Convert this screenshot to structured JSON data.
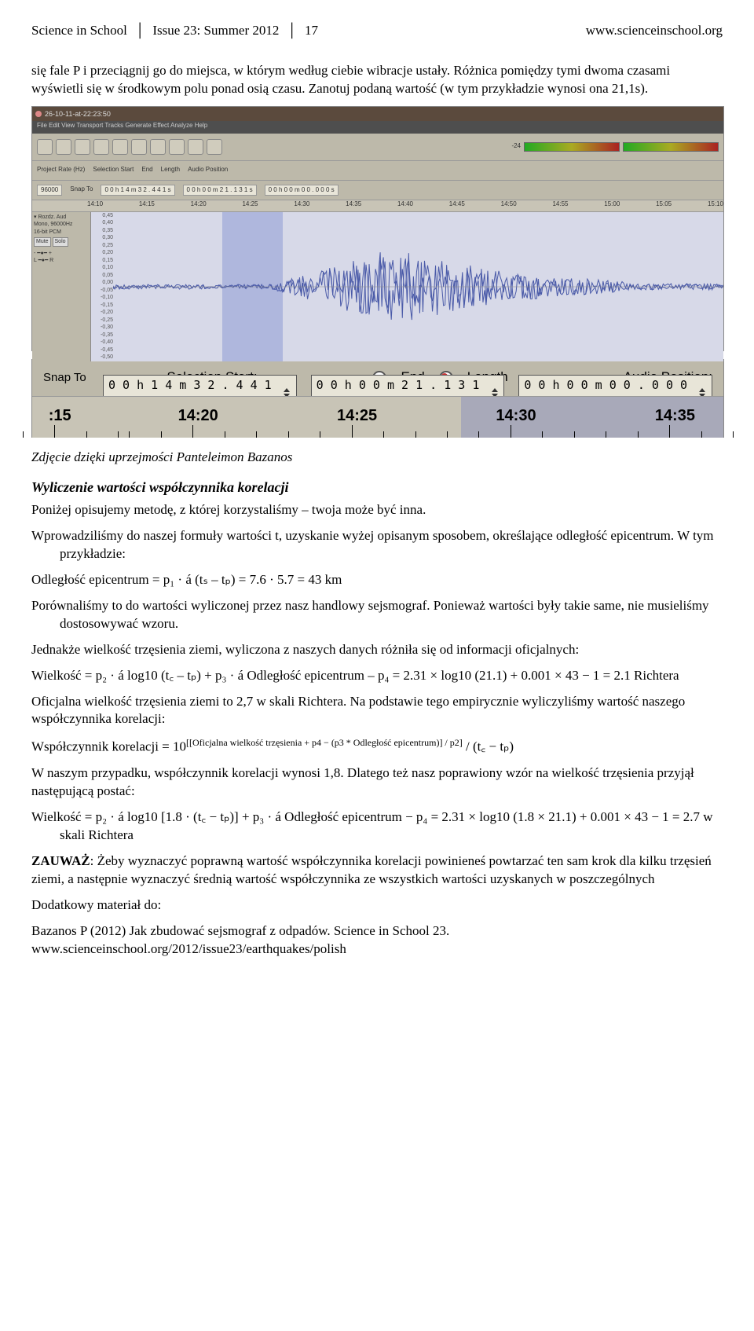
{
  "header": {
    "journal": "Science in School",
    "issue": "Issue 23: Summer 2012",
    "page": "17",
    "url": "www.scienceinschool.org"
  },
  "para1": "się fale P i przeciągnij go do miejsca, w którym według ciebie wibracje ustały. Różnica pomiędzy tymi dwoma czasami wyświetli się w środkowym polu ponad osią czasu. Zanotuj podaną wartość (w tym przykładzie wynosi ona 21,1s).",
  "screenshot1": {
    "titlebar": "26-10-11-at-22:23:50",
    "menu": "File  Edit  View  Transport  Tracks  Generate  Effect  Analyze  Help",
    "info": {
      "rate_label": "Project Rate (Hz)",
      "rate_val": "96000",
      "snap": "Snap To",
      "sel_start": "Selection Start",
      "end": "End",
      "length": "Length",
      "audio_pos": "Audio Position",
      "t1": "0 0 h 1 4 m 3 2 . 4 4 1 s",
      "t2": "0 0 h 0 0 m 2 1 . 1 3 1 s",
      "t3": "0 0 h 0 0 m 0 0 . 0 0 0 s"
    },
    "timeline_ticks": [
      "14:10",
      "14:15",
      "14:20",
      "14:25",
      "14:30",
      "14:35",
      "14:40",
      "14:45",
      "14:50",
      "14:55",
      "15:00",
      "15:05",
      "15:10"
    ],
    "y_ticks": [
      "0,45",
      "0,40",
      "0,35",
      "0,30",
      "0,25",
      "0,20",
      "0,15",
      "0,10",
      "0,05",
      "0,00",
      "-0,05",
      "-0,10",
      "-0,15",
      "-0,20",
      "-0,25",
      "-0,30",
      "-0,35",
      "-0,40",
      "-0,45",
      "-0,50"
    ],
    "waveform_color": "#4a5aa8",
    "bg_color": "#d7d9e8",
    "selection": {
      "left_pct": 18,
      "width_pct": 10
    }
  },
  "screenshot2": {
    "labels": {
      "sel_start": "Selection Start:",
      "end": "End",
      "length": "Length",
      "audio_pos": "Audio Position:",
      "snap": "Snap To"
    },
    "t1": "0 0 h 1 4 m 3 2 . 4 4 1 s",
    "t2": "0 0 h 0 0 m 2 1 . 1 3 1 s",
    "t3": "0 0 h 0 0 m 0 0 . 0 0 0 s",
    "ruler_ticks": [
      {
        "pos_pct": 4,
        "label": ":15",
        "bold": false
      },
      {
        "pos_pct": 24,
        "label": "14:20",
        "bold": true
      },
      {
        "pos_pct": 47,
        "label": "14:25",
        "bold": true
      },
      {
        "pos_pct": 70,
        "label": "14:30",
        "bold": true
      },
      {
        "pos_pct": 93,
        "label": "14:35",
        "bold": true
      }
    ],
    "selection": {
      "left_pct": 62,
      "width_pct": 38
    }
  },
  "caption1": "Zdjęcie dzięki uprzejmości Panteleimon Bazanos",
  "section_title": "Wyliczenie wartości współczynnika korelacji",
  "p2": "Poniżej opisujemy metodę, z której korzystaliśmy – twoja może być inna.",
  "p3": "Wprowadziliśmy do naszej formuły wartości t, uzyskanie wyżej opisanym sposobem, określające odległość epicentrum. W tym przykładzie:",
  "p4": "Odległość epicentrum = p₁ · á (tₛ – tₚ) = 7.6 · 5.7 = 43 km",
  "p5": "Porównaliśmy to do wartości wyliczonej przez nasz handlowy sejsmograf. Ponieważ wartości były takie same, nie musieliśmy dostosowywać wzoru.",
  "p6": "Jednakże wielkość trzęsienia ziemi, wyliczona z naszych danych różniła się od informacji oficjalnych:",
  "p7": "Wielkość = p₂ · á log10 (t꜀ – tₚ) + p₃ · á Odległość epicentrum – p₄ = 2.31 × log10 (21.1) + 0.001 × 43 − 1 = 2.1 Richtera",
  "p8": "Oficjalna wielkość trzęsienia ziemi to 2,7 w skali Richtera. Na podstawie tego empirycznie wyliczyliśmy wartość naszego współczynnika korelacji:",
  "p9a": "Współczynnik korelacji = 10",
  "p9exp": "[[Oficjalna wielkość trzęsienia + p4 − (p3 * Odległość epicentrum)] / p2]",
  "p9b": " / (t꜀ − tₚ)",
  "p10": "W naszym przypadku, współczynnik korelacji wynosi 1,8. Dlatego też nasz poprawiony wzór na wielkość trzęsienia przyjął następującą postać:",
  "p11": "Wielkość = p₂ · á log10 [1.8 · (t꜀ − tₚ)] + p₃ · á Odległość epicentrum − p₄ = 2.31 × log10 (1.8 × 21.1) + 0.001 × 43 − 1 = 2.7 w skali Richtera",
  "p12a": "ZAUWAŻ",
  "p12b": ": Żeby wyznaczyć poprawną wartość współczynnika korelacji powinieneś powtarzać ten sam krok dla kilku trzęsień ziemi, a następnie wyznaczyć średnią wartość współczynnika ze wszystkich wartości uzyskanych w poszczególnych",
  "footer1": "Dodatkowy materiał do:",
  "footer2": "Bazanos P (2012) Jak zbudować sejsmograf z odpadów. Science in School 23. www.scienceinschool.org/2012/issue23/earthquakes/polish"
}
